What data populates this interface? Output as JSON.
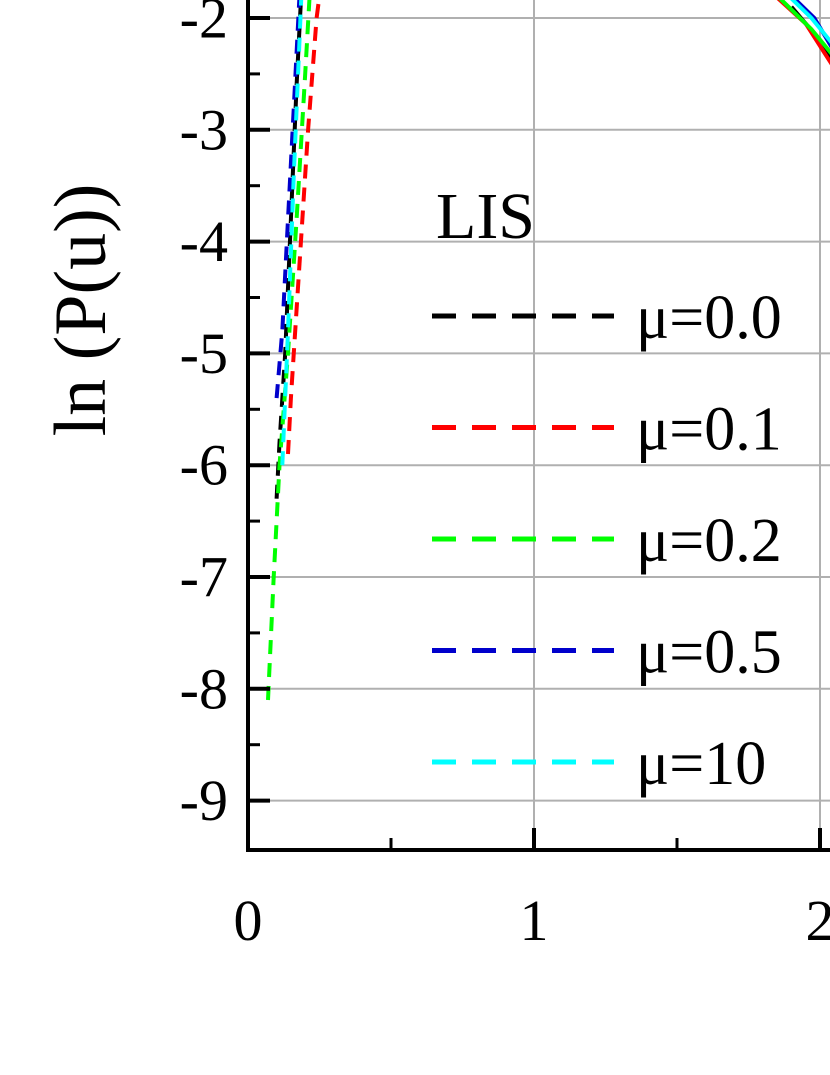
{
  "chart_data": {
    "type": "line",
    "title": "",
    "xlabel": "",
    "ylabel": "ln (P(u))",
    "xlim": [
      0,
      2.05
    ],
    "ylim": [
      -9.5,
      -1.6
    ],
    "x_ticks": [
      "0",
      "1",
      "2"
    ],
    "y_ticks": [
      "-2",
      "-3",
      "-4",
      "-5",
      "-6",
      "-7",
      "-8",
      "-9"
    ],
    "grid": true,
    "legend_title": "LIS",
    "legend_position": "center",
    "series": [
      {
        "name": "μ=0.0",
        "color": "#000000",
        "dash": true,
        "points": [
          [
            0.1,
            -6.3
          ],
          [
            0.11,
            -5.8
          ],
          [
            0.13,
            -5.0
          ],
          [
            0.15,
            -3.8
          ],
          [
            0.17,
            -2.6
          ],
          [
            0.19,
            -1.6
          ]
        ],
        "tail": [
          [
            1.9,
            -1.9
          ],
          [
            2.0,
            -2.2
          ],
          [
            2.05,
            -2.4
          ]
        ]
      },
      {
        "name": "μ=0.1",
        "color": "#ff0000",
        "dash": true,
        "points": [
          [
            0.14,
            -5.9
          ],
          [
            0.15,
            -5.4
          ],
          [
            0.18,
            -4.2
          ],
          [
            0.21,
            -3.0
          ],
          [
            0.24,
            -2.0
          ],
          [
            0.26,
            -1.6
          ]
        ],
        "tail": [
          [
            1.8,
            -1.7
          ],
          [
            1.95,
            -2.05
          ],
          [
            2.05,
            -2.45
          ]
        ]
      },
      {
        "name": "μ=0.2",
        "color": "#00ff00",
        "dash": true,
        "points": [
          [
            0.07,
            -8.1
          ],
          [
            0.09,
            -7.0
          ],
          [
            0.11,
            -6.0
          ],
          [
            0.14,
            -5.0
          ],
          [
            0.17,
            -3.8
          ],
          [
            0.2,
            -2.5
          ],
          [
            0.22,
            -1.6
          ]
        ],
        "tail": [
          [
            1.85,
            -1.8
          ],
          [
            1.97,
            -2.1
          ],
          [
            2.05,
            -2.35
          ]
        ]
      },
      {
        "name": "μ=0.5",
        "color": "#0000cc",
        "dash": true,
        "points": [
          [
            0.1,
            -5.4
          ],
          [
            0.12,
            -4.8
          ],
          [
            0.14,
            -3.8
          ],
          [
            0.16,
            -2.8
          ],
          [
            0.18,
            -1.8
          ],
          [
            0.19,
            -1.6
          ]
        ],
        "tail": [
          [
            1.88,
            -1.75
          ],
          [
            1.98,
            -2.0
          ],
          [
            2.05,
            -2.3
          ]
        ]
      },
      {
        "name": "μ=10",
        "color": "#00ffff",
        "dash": true,
        "points": [
          [
            0.12,
            -6.0
          ],
          [
            0.14,
            -4.8
          ],
          [
            0.16,
            -3.4
          ],
          [
            0.18,
            -2.2
          ],
          [
            0.19,
            -1.6
          ]
        ],
        "tail": [
          [
            1.87,
            -1.75
          ],
          [
            1.97,
            -2.0
          ],
          [
            2.05,
            -2.25
          ]
        ]
      }
    ]
  }
}
